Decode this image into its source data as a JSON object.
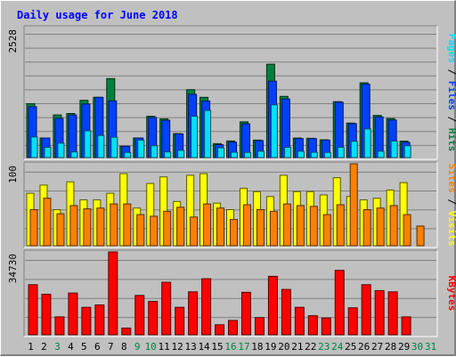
{
  "chart_data": {
    "type": "bar",
    "title": "Daily usage for June 2018",
    "categories": [
      "1",
      "2",
      "3",
      "4",
      "5",
      "6",
      "7",
      "8",
      "9",
      "10",
      "11",
      "12",
      "13",
      "14",
      "15",
      "16",
      "17",
      "18",
      "19",
      "20",
      "21",
      "22",
      "23",
      "24",
      "25",
      "26",
      "27",
      "28",
      "29",
      "30",
      "31"
    ],
    "weekend_days": [
      "3",
      "9",
      "10",
      "16",
      "17",
      "23",
      "24",
      "30",
      "31"
    ],
    "colors": {
      "title": "#0000ff",
      "hits": "#008040",
      "files": "#0040ff",
      "pages": "#00e0ff",
      "visits": "#ffff00",
      "sites": "#ff8000",
      "kbytes": "#ff0000",
      "weekday_label": "#000000",
      "weekend_label": "#008040"
    },
    "panels": [
      {
        "name": "hits-files-pages",
        "max_label": "2528",
        "ymax": 2528,
        "legend": [
          "Pages",
          "Files",
          "Hits"
        ],
        "series": [
          {
            "name": "Hits",
            "key": "hits",
            "values": [
              1048,
              381,
              829,
              857,
              1113,
              1172,
              1536,
              220,
              381,
              803,
              753,
              466,
              1321,
              1172,
              270,
              323,
              695,
              340,
              1816,
              1190,
              380,
              375,
              345,
              1087,
              671,
              1454,
              820,
              760,
              320,
              0,
              0
            ]
          },
          {
            "name": "Files",
            "key": "files",
            "values": [
              990,
              381,
              762,
              828,
              1041,
              1172,
              1103,
              220,
              381,
              780,
              725,
              460,
              1231,
              1100,
              250,
              300,
              657,
              330,
              1486,
              1140,
              370,
              370,
              340,
              1077,
              660,
              1427,
              790,
              730,
              297,
              0,
              0
            ]
          },
          {
            "name": "Pages",
            "key": "pages",
            "values": [
              400,
              200,
              280,
              110,
              520,
              430,
              395,
              100,
              340,
              230,
              110,
              140,
              803,
              915,
              190,
              103,
              100,
              123,
              1026,
              200,
              123,
              103,
              100,
              200,
              316,
              557,
              123,
              320,
              230,
              0,
              0
            ]
          }
        ]
      },
      {
        "name": "visits-sites",
        "max_label": "100",
        "ymax": 100,
        "legend": [
          "Sites",
          "Visits"
        ],
        "series": [
          {
            "name": "Visits",
            "key": "visits",
            "values": [
              64,
              74,
              44,
              78,
              56,
              56,
              64,
              88,
              46,
              76,
              84,
              54,
              86,
              88,
              52,
              44,
              70,
              66,
              60,
              86,
              66,
              66,
              62,
              83,
              60,
              56,
              58,
              68,
              77,
              0,
              0
            ]
          },
          {
            "name": "Sites",
            "key": "sites",
            "values": [
              44,
              58,
              39,
              49,
              45,
              46,
              51,
              51,
              38,
              36,
              42,
              47,
              35,
              51,
              46,
              32,
              50,
              44,
              42,
              51,
              49,
              48,
              38,
              50,
              100,
              44,
              46,
              49,
              38,
              24,
              0
            ]
          }
        ]
      },
      {
        "name": "kbytes",
        "max_label": "34730",
        "ymax": 34730,
        "legend": [
          "KBytes"
        ],
        "series": [
          {
            "name": "KBytes",
            "key": "kbytes",
            "values": [
              21000,
              17000,
              7500,
              17500,
              11500,
              12500,
              34730,
              2800,
              16500,
              14000,
              22000,
              11500,
              18000,
              23500,
              4200,
              6000,
              17800,
              7200,
              24500,
              19000,
              11500,
              8000,
              7000,
              27000,
              11300,
              21000,
              18500,
              18000,
              7500,
              0,
              0
            ]
          }
        ]
      }
    ]
  }
}
